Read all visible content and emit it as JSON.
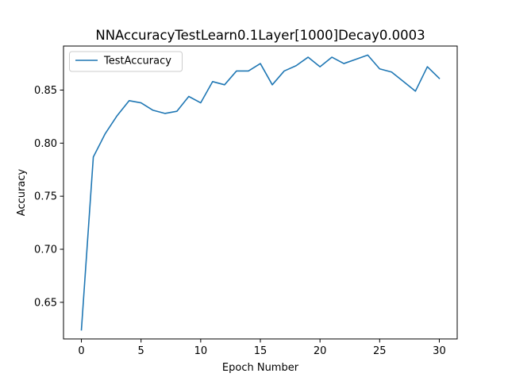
{
  "chart_data": {
    "type": "line",
    "title": "NNAccuracyTestLearn0.1Layer[1000]Decay0.0003",
    "xlabel": "Epoch Number",
    "ylabel": "Accuracy",
    "xlim": [
      -1.5,
      31.5
    ],
    "ylim": [
      0.6155,
      0.8915
    ],
    "xticks": [
      0,
      5,
      10,
      15,
      20,
      25,
      30
    ],
    "xtick_labels": [
      "0",
      "5",
      "10",
      "15",
      "20",
      "25",
      "30"
    ],
    "yticks": [
      0.65,
      0.7,
      0.75,
      0.8,
      0.85
    ],
    "ytick_labels": [
      "0.65",
      "0.70",
      "0.75",
      "0.80",
      "0.85"
    ],
    "grid": false,
    "legend_position": "top-left",
    "x": [
      0,
      1,
      2,
      3,
      4,
      5,
      6,
      7,
      8,
      9,
      10,
      11,
      12,
      13,
      14,
      15,
      16,
      17,
      18,
      19,
      20,
      21,
      22,
      23,
      24,
      25,
      26,
      27,
      28,
      29,
      30
    ],
    "series": [
      {
        "name": "TestAccuracy",
        "color": "#1f77b4",
        "values": [
          0.624,
          0.787,
          0.809,
          0.826,
          0.84,
          0.838,
          0.831,
          0.828,
          0.83,
          0.844,
          0.838,
          0.858,
          0.855,
          0.868,
          0.868,
          0.875,
          0.855,
          0.868,
          0.873,
          0.881,
          0.872,
          0.881,
          0.875,
          0.879,
          0.883,
          0.87,
          0.867,
          0.858,
          0.849,
          0.872,
          0.861
        ]
      }
    ]
  }
}
